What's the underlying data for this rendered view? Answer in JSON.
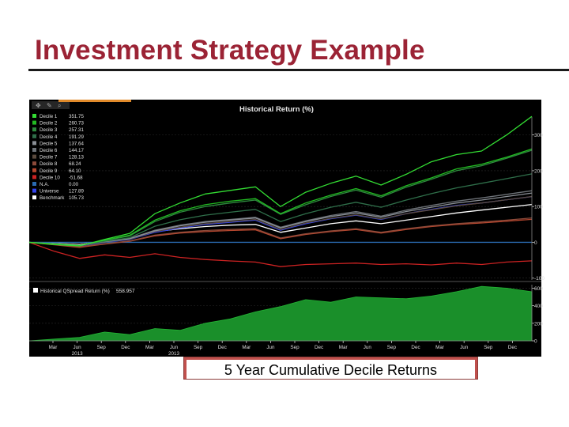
{
  "slide": {
    "title": "Investment Strategy Example",
    "caption": "5 Year Cumulative Decile Returns"
  },
  "colors": {
    "title": "#9b2335",
    "panel_bg": "#000000",
    "caption_border": "#c0504d"
  },
  "chart_data": [
    {
      "type": "line",
      "title": "Historical Return (%)",
      "x_ticks": [
        "Mar",
        "Jun",
        "Sep",
        "Dec",
        "Mar",
        "Jun",
        "Sep",
        "Dec",
        "Mar",
        "Jun",
        "Sep",
        "Dec",
        "Mar",
        "Jun",
        "Sep",
        "Dec",
        "Mar",
        "Jun",
        "Sep",
        "Dec"
      ],
      "year_ticks": [
        {
          "label": "2013",
          "index": 1
        },
        {
          "label": "2013",
          "index": 5
        }
      ],
      "y_ticks": [
        300,
        200,
        100,
        0,
        -100
      ],
      "ylim": [
        -105,
        350
      ],
      "grid": true,
      "legend_position": "top-left",
      "x": [
        0,
        1,
        2,
        3,
        4,
        5,
        6,
        7,
        8,
        9,
        10,
        11,
        12,
        13,
        14,
        15,
        16,
        17,
        18,
        19,
        20
      ],
      "series": [
        {
          "name": "Decile 1",
          "legend_value": "351.75",
          "color": "#33dd33",
          "values": [
            0,
            -6,
            -10,
            8,
            25,
            80,
            110,
            135,
            145,
            155,
            100,
            140,
            165,
            185,
            160,
            190,
            225,
            245,
            255,
            300,
            351.75
          ]
        },
        {
          "name": "Decile 2",
          "legend_value": "260.73",
          "color": "#22bb22",
          "values": [
            0,
            -5,
            -9,
            6,
            20,
            62,
            88,
            105,
            115,
            122,
            80,
            110,
            132,
            150,
            130,
            158,
            180,
            205,
            218,
            238,
            260.73
          ]
        },
        {
          "name": "Decile 3",
          "legend_value": "257.31",
          "color": "#2e8b3e",
          "values": [
            0,
            -5,
            -9,
            5,
            18,
            58,
            84,
            100,
            110,
            118,
            78,
            105,
            128,
            146,
            126,
            154,
            176,
            200,
            214,
            235,
            257.31
          ]
        },
        {
          "name": "Decile 4",
          "legend_value": "191.29",
          "color": "#2f6f4a",
          "values": [
            0,
            -4,
            -8,
            3,
            13,
            45,
            63,
            76,
            84,
            92,
            58,
            80,
            98,
            112,
            98,
            118,
            136,
            152,
            165,
            178,
            191.29
          ]
        },
        {
          "name": "Decile 5",
          "legend_value": "137.64",
          "color": "#8a8f96",
          "values": [
            0,
            -4,
            -8,
            2,
            10,
            32,
            46,
            56,
            62,
            68,
            40,
            58,
            72,
            82,
            70,
            86,
            98,
            110,
            118,
            128,
            137.64
          ]
        },
        {
          "name": "Decile 6",
          "legend_value": "144.17",
          "color": "#6e7379",
          "values": [
            0,
            -4,
            -8,
            2,
            11,
            34,
            48,
            58,
            64,
            70,
            42,
            60,
            75,
            86,
            73,
            90,
            103,
            115,
            124,
            134,
            144.17
          ]
        },
        {
          "name": "Decile 7",
          "legend_value": "128.13",
          "color": "#5a4a3e",
          "values": [
            0,
            -4,
            -9,
            1,
            9,
            30,
            42,
            52,
            58,
            64,
            36,
            54,
            67,
            77,
            65,
            80,
            91,
            102,
            110,
            119,
            128.13
          ]
        },
        {
          "name": "Decile 8",
          "legend_value": "68.24",
          "color": "#8b4a3a",
          "values": [
            0,
            -6,
            -12,
            -4,
            4,
            20,
            28,
            33,
            36,
            38,
            12,
            24,
            32,
            38,
            28,
            38,
            46,
            52,
            57,
            62,
            68.24
          ]
        },
        {
          "name": "Decile 9",
          "legend_value": "64.10",
          "color": "#b5462e",
          "values": [
            0,
            -7,
            -14,
            -5,
            3,
            18,
            26,
            30,
            33,
            35,
            10,
            22,
            30,
            36,
            26,
            36,
            44,
            50,
            54,
            59,
            64.1
          ]
        },
        {
          "name": "Decile 10",
          "legend_value": "-51.68",
          "color": "#cc2222",
          "values": [
            0,
            -25,
            -45,
            -35,
            -42,
            -32,
            -42,
            -48,
            -52,
            -55,
            -68,
            -62,
            -60,
            -58,
            -62,
            -60,
            -63,
            -58,
            -62,
            -55,
            -51.68
          ]
        },
        {
          "name": "N.A.",
          "legend_value": "0.00",
          "color": "#2a6ab0",
          "values": [
            0,
            0,
            0,
            0,
            0,
            0,
            0,
            0,
            0,
            0,
            0,
            0,
            0,
            0,
            0,
            0,
            0,
            0,
            0,
            0,
            0
          ]
        },
        {
          "name": "Universe",
          "legend_value": "127.89",
          "color": "#3344ee",
          "values": [
            0,
            -5,
            -10,
            0,
            8,
            28,
            40,
            50,
            56,
            62,
            34,
            52,
            66,
            76,
            64,
            80,
            92,
            103,
            110,
            119,
            127.89
          ]
        },
        {
          "name": "Benchmark",
          "legend_value": "105.73",
          "color": "#ffffff",
          "values": [
            0,
            -3,
            -6,
            2,
            10,
            30,
            38,
            44,
            48,
            50,
            28,
            40,
            52,
            60,
            52,
            62,
            72,
            82,
            90,
            98,
            105.73
          ]
        }
      ]
    },
    {
      "type": "area",
      "legend": "Historical QSpread Return (%)",
      "legend_value": "558.957",
      "y_ticks": [
        600,
        400,
        200,
        0
      ],
      "ylim": [
        0,
        640
      ],
      "color": "#1a8f2a",
      "x": [
        0,
        1,
        2,
        3,
        4,
        5,
        6,
        7,
        8,
        9,
        10,
        11,
        12,
        13,
        14,
        15,
        16,
        17,
        18,
        19,
        20
      ],
      "values": [
        0,
        20,
        40,
        100,
        70,
        140,
        120,
        200,
        250,
        330,
        390,
        470,
        440,
        500,
        490,
        480,
        510,
        560,
        620,
        600,
        558.957
      ]
    }
  ]
}
